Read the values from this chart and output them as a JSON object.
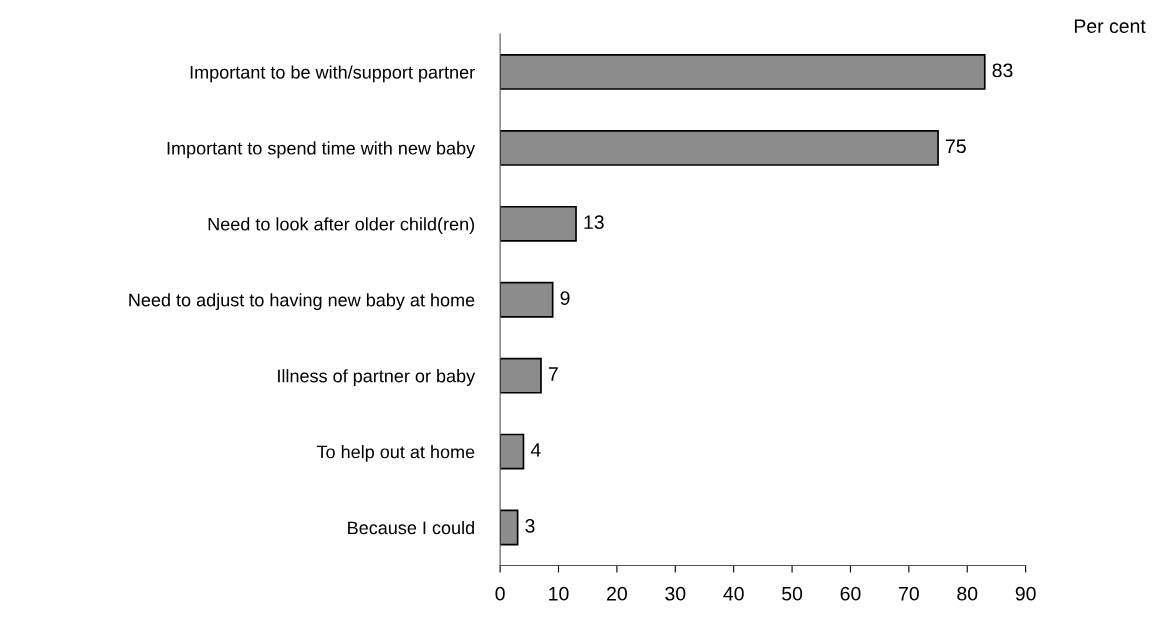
{
  "chart_data": {
    "type": "bar",
    "orientation": "horizontal",
    "xlabel": "Per cent",
    "categories": [
      "Important to be with/support partner",
      "Important to spend time with new baby",
      "Need to look after older child(ren)",
      "Need to adjust to having new baby at home",
      "Illness of partner or baby",
      "To help out at home",
      "Because I could"
    ],
    "values": [
      83,
      75,
      13,
      9,
      7,
      4,
      3
    ],
    "color": "#8c8c8c",
    "xlim": [
      0,
      90
    ],
    "xticks": [
      0,
      10,
      20,
      30,
      40,
      50,
      60,
      70,
      80,
      90
    ],
    "data_labels": true,
    "grid": false,
    "legend": false
  }
}
